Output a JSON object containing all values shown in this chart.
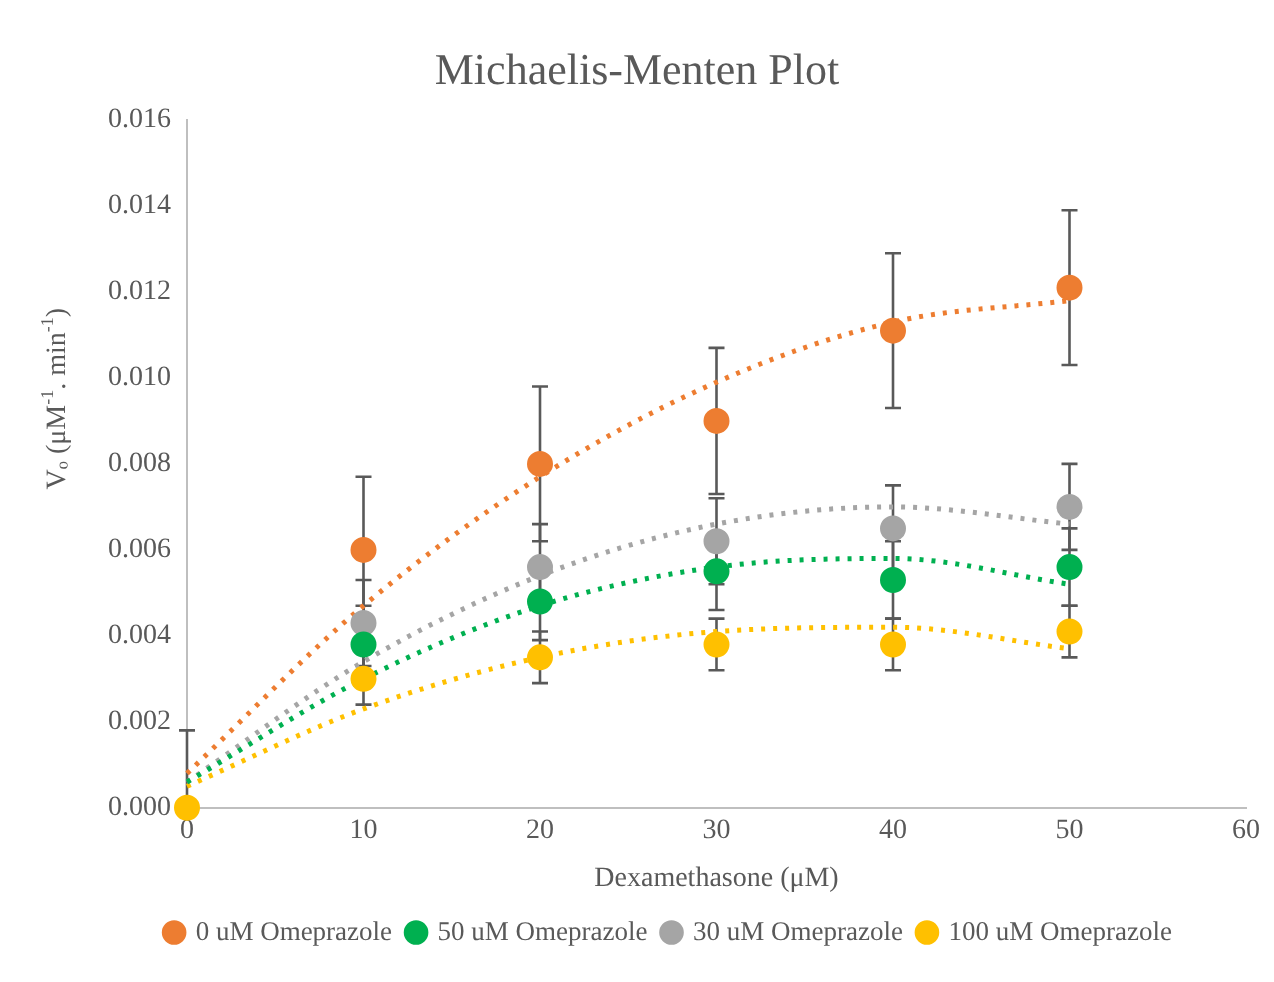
{
  "chart_data": {
    "type": "scatter",
    "title": "Michaelis-Menten Plot",
    "xlabel": "Dexamethasone (μM)",
    "ylabel": "Vₒ (μM$^{-1}$. min$^{-1}$)",
    "x": [
      0,
      10,
      20,
      30,
      40,
      50
    ],
    "xlim": [
      0,
      60
    ],
    "xticks": [
      0,
      10,
      20,
      30,
      40,
      50,
      60
    ],
    "ylim": [
      0,
      0.016
    ],
    "yticks": [
      {
        "value": 0,
        "label": "0.000"
      },
      {
        "value": 0.002,
        "label": "0.002"
      },
      {
        "value": 0.004,
        "label": "0.004"
      },
      {
        "value": 0.006,
        "label": "0.006"
      },
      {
        "value": 0.008,
        "label": "0.008"
      },
      {
        "value": 0.01,
        "label": "0.010"
      },
      {
        "value": 0.012,
        "label": "0.012"
      },
      {
        "value": 0.014,
        "label": "0.014"
      },
      {
        "value": 0.016,
        "label": "0.016"
      }
    ],
    "grid": false,
    "legend": "bottom",
    "marker": "circle",
    "series": [
      {
        "name": "0 uM Omeprazole",
        "color": "#ed7d31",
        "values": [
          null,
          0.006,
          0.008,
          0.009,
          0.0111,
          0.0121
        ],
        "errors": [
          null,
          0.0017,
          0.0018,
          0.0017,
          0.0018,
          0.0018
        ]
      },
      {
        "name": "50 uM Omeprazole",
        "color": "#00b050",
        "values": [
          null,
          0.0038,
          0.0048,
          0.0055,
          0.0053,
          0.0056
        ],
        "errors": [
          null,
          0.0009,
          0.0009,
          0.0009,
          0.0009,
          0.0009
        ]
      },
      {
        "name": "30 uM Omeprazole",
        "color": "#a5a5a5",
        "values": [
          null,
          0.0043,
          0.0056,
          0.0062,
          0.0065,
          0.007
        ],
        "errors": [
          null,
          0.001,
          0.001,
          0.001,
          0.001,
          0.001
        ]
      },
      {
        "name": "100 uM Omeprazole",
        "color": "#ffc000",
        "values": [
          0,
          0.003,
          0.0035,
          0.0038,
          0.0038,
          0.0041
        ],
        "errors": [
          [
            0,
            0.0018
          ],
          0.0006,
          0.0006,
          0.0006,
          0.0006,
          0.0006
        ]
      },
      {
        "type": "line",
        "color": "#ed7d31",
        "line_style": "dotted",
        "marker": "none",
        "x": [
          0,
          10,
          20,
          30,
          40,
          50
        ],
        "values": [
          0.0008,
          0.0047,
          0.0077,
          0.0099,
          0.0113,
          0.0118
        ]
      },
      {
        "type": "line",
        "color": "#00b050",
        "line_style": "dotted",
        "marker": "none",
        "x": [
          0,
          10,
          20,
          30,
          40,
          50
        ],
        "values": [
          0.0006,
          0.003,
          0.0047,
          0.0056,
          0.0058,
          0.0052
        ]
      },
      {
        "type": "line",
        "color": "#a5a5a5",
        "line_style": "dotted",
        "marker": "none",
        "x": [
          0,
          10,
          20,
          30,
          40,
          50
        ],
        "values": [
          0.0006,
          0.0034,
          0.0054,
          0.0066,
          0.007,
          0.0066
        ]
      },
      {
        "type": "line",
        "color": "#ffc000",
        "line_style": "dotted",
        "marker": "none",
        "x": [
          0,
          10,
          20,
          30,
          40,
          50
        ],
        "values": [
          0.0005,
          0.0023,
          0.0035,
          0.0041,
          0.0042,
          0.0037
        ]
      }
    ]
  }
}
